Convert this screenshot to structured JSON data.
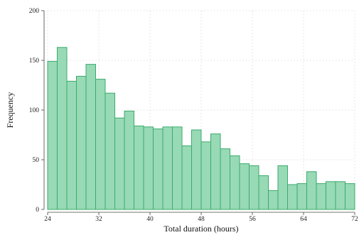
{
  "chart_data": {
    "type": "bar",
    "subtype": "histogram",
    "title": "",
    "xlabel": "Total duration (hours)",
    "ylabel": "Frequency",
    "xlim": [
      24,
      72
    ],
    "ylim": [
      0,
      200
    ],
    "bin_width": 1.5,
    "x_ticks": [
      24,
      32,
      40,
      48,
      56,
      64,
      72
    ],
    "y_ticks": [
      0,
      50,
      100,
      150,
      200
    ],
    "grid": true,
    "legend": "none",
    "bar_fill": "#98dab5",
    "bar_stroke": "#3aaa6c",
    "bins": [
      {
        "start": 24.0,
        "end": 25.5,
        "count": 149
      },
      {
        "start": 25.5,
        "end": 27.0,
        "count": 163
      },
      {
        "start": 27.0,
        "end": 28.5,
        "count": 129
      },
      {
        "start": 28.5,
        "end": 30.0,
        "count": 134
      },
      {
        "start": 30.0,
        "end": 31.5,
        "count": 146
      },
      {
        "start": 31.5,
        "end": 33.0,
        "count": 131
      },
      {
        "start": 33.0,
        "end": 34.5,
        "count": 117
      },
      {
        "start": 34.5,
        "end": 36.0,
        "count": 92
      },
      {
        "start": 36.0,
        "end": 37.5,
        "count": 99
      },
      {
        "start": 37.5,
        "end": 39.0,
        "count": 84
      },
      {
        "start": 39.0,
        "end": 40.5,
        "count": 83
      },
      {
        "start": 40.5,
        "end": 42.0,
        "count": 81
      },
      {
        "start": 42.0,
        "end": 43.5,
        "count": 83
      },
      {
        "start": 43.5,
        "end": 45.0,
        "count": 83
      },
      {
        "start": 45.0,
        "end": 46.5,
        "count": 64
      },
      {
        "start": 46.5,
        "end": 48.0,
        "count": 80
      },
      {
        "start": 48.0,
        "end": 49.5,
        "count": 68
      },
      {
        "start": 49.5,
        "end": 51.0,
        "count": 76
      },
      {
        "start": 51.0,
        "end": 52.5,
        "count": 61
      },
      {
        "start": 52.5,
        "end": 54.0,
        "count": 54
      },
      {
        "start": 54.0,
        "end": 55.5,
        "count": 46
      },
      {
        "start": 55.5,
        "end": 57.0,
        "count": 44
      },
      {
        "start": 57.0,
        "end": 58.5,
        "count": 34
      },
      {
        "start": 58.5,
        "end": 60.0,
        "count": 19
      },
      {
        "start": 60.0,
        "end": 61.5,
        "count": 44
      },
      {
        "start": 61.5,
        "end": 63.0,
        "count": 25
      },
      {
        "start": 63.0,
        "end": 64.5,
        "count": 26
      },
      {
        "start": 64.5,
        "end": 66.0,
        "count": 38
      },
      {
        "start": 66.0,
        "end": 67.5,
        "count": 26
      },
      {
        "start": 67.5,
        "end": 69.0,
        "count": 28
      },
      {
        "start": 69.0,
        "end": 70.5,
        "count": 28
      },
      {
        "start": 70.5,
        "end": 72.0,
        "count": 26
      }
    ]
  }
}
